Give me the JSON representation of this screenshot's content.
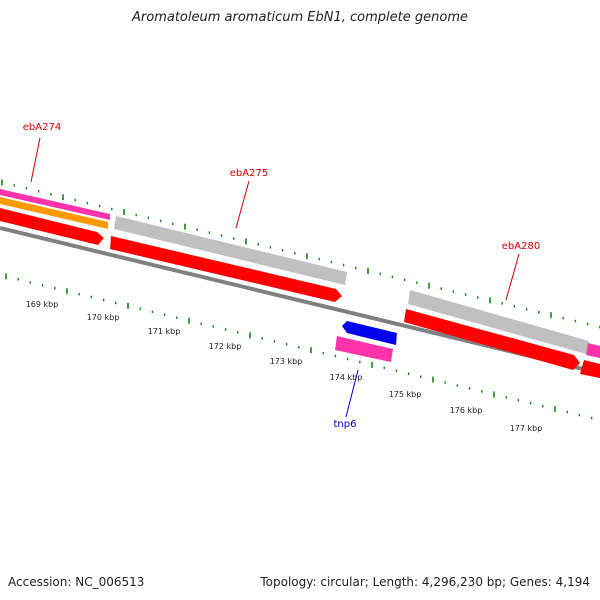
{
  "header": {
    "title": "Aromatoleum aromaticum EbN1, complete genome"
  },
  "footer": {
    "accession": "Accession: NC_006513",
    "summary": "Topology: circular; Length: 4,296,230 bp; Genes: 4,194"
  },
  "colors": {
    "cds": "#ff0000",
    "gene_gray": "#c0c0c0",
    "pink": "#ff33aa",
    "orange": "#ff9900",
    "blue": "#0000ee",
    "tick": "#118811",
    "label_red": "#cc0000",
    "label_blue": "#0000cc",
    "backbone": "#808080"
  },
  "gene_labels": [
    {
      "id": "ebA274",
      "text": "ebA274",
      "color": "red"
    },
    {
      "id": "ebA275",
      "text": "ebA275",
      "color": "red"
    },
    {
      "id": "ebA280",
      "text": "ebA280",
      "color": "red"
    },
    {
      "id": "tnp6",
      "text": "tnp6",
      "color": "blue"
    }
  ],
  "scale_labels": [
    "169 kbp",
    "170 kbp",
    "171 kbp",
    "172 kbp",
    "173 kbp",
    "174 kbp",
    "175 kbp",
    "176 kbp",
    "177 kbp"
  ]
}
